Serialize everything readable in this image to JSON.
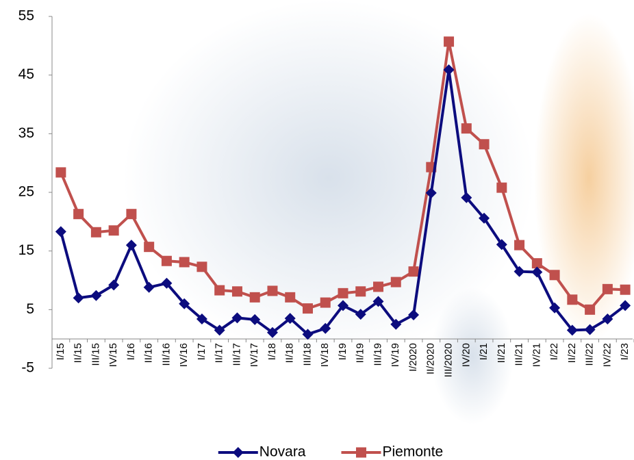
{
  "chart_data": {
    "type": "line",
    "categories": [
      "I/15",
      "II/15",
      "III/15",
      "IV/15",
      "I/16",
      "II/16",
      "III/16",
      "IV/16",
      "I/17",
      "II/17",
      "III/17",
      "IV/17",
      "I/18",
      "II/18",
      "III/18",
      "IV/18",
      "I/19",
      "II/19",
      "III/19",
      "IV/19",
      "I/2020",
      "II/2020",
      "III/2020",
      "IV/20",
      "I/21",
      "II/21",
      "III/21",
      "IV/21",
      "I/22",
      "II/22",
      "III/22",
      "IV/22",
      "I/23"
    ],
    "series": [
      {
        "name": "Novara",
        "color": "#0c0c7e",
        "marker": "diamond",
        "values": [
          18.3,
          7.0,
          7.4,
          9.2,
          16.0,
          8.8,
          9.5,
          6.0,
          3.4,
          1.5,
          3.6,
          3.3,
          1.1,
          3.5,
          0.8,
          1.8,
          5.7,
          4.2,
          6.4,
          2.5,
          4.1,
          24.9,
          45.9,
          24.1,
          20.6,
          16.1,
          11.5,
          11.4,
          5.3,
          1.5,
          1.6,
          3.4,
          5.7
        ]
      },
      {
        "name": "Piemonte",
        "color": "#c0504d",
        "marker": "square",
        "values": [
          28.4,
          21.3,
          18.2,
          18.5,
          21.3,
          15.7,
          13.3,
          13.1,
          12.3,
          8.3,
          8.1,
          7.1,
          8.2,
          7.1,
          5.2,
          6.2,
          7.8,
          8.1,
          8.9,
          9.7,
          11.5,
          29.3,
          50.7,
          35.9,
          33.2,
          25.8,
          16.0,
          12.9,
          10.9,
          6.7,
          5.0,
          8.5,
          8.4
        ]
      }
    ],
    "ylim": [
      -5,
      55
    ],
    "yticks": [
      -5,
      5,
      15,
      25,
      35,
      45,
      55
    ],
    "grid": false,
    "legend": "bottom"
  }
}
